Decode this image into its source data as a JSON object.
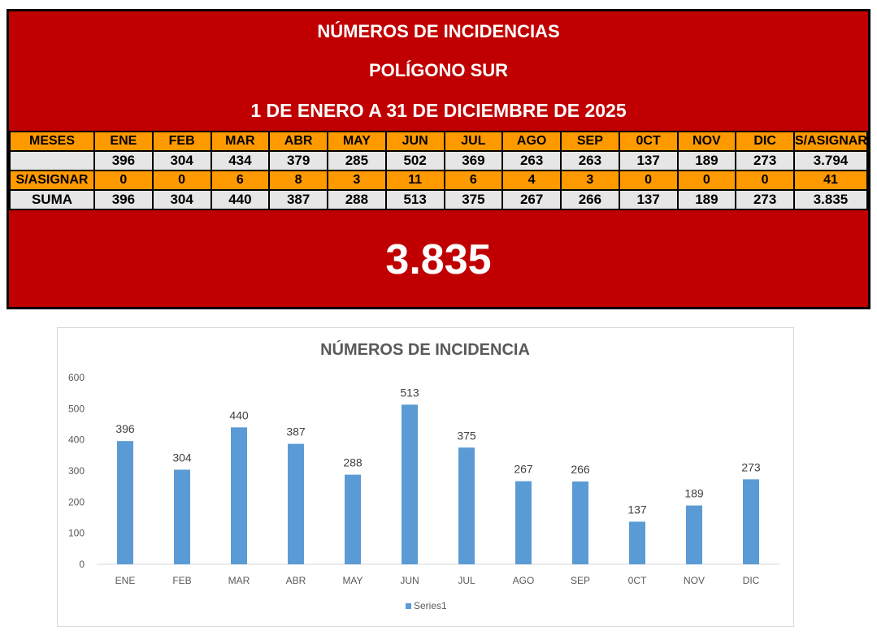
{
  "report": {
    "title": "NÚMEROS DE INCIDENCIAS",
    "subtitle": "POLÍGONO SUR",
    "period": "1 DE ENERO A 31 DE DICIEMBRE DE 2025",
    "grand_total": "3.835",
    "colors": {
      "panel": "#c00000",
      "header_row": "#ff9900",
      "data_row": "#e6e6e6",
      "bar": "#5b9bd5"
    }
  },
  "table": {
    "header": [
      "MESES",
      "ENE",
      "FEB",
      "MAR",
      "ABR",
      "MAY",
      "JUN",
      "JUL",
      "AGO",
      "SEP",
      "0CT",
      "NOV",
      "DIC",
      "S/ASIGNAR"
    ],
    "rows": [
      {
        "label": "",
        "style": "grey",
        "cells": [
          "396",
          "304",
          "434",
          "379",
          "285",
          "502",
          "369",
          "263",
          "263",
          "137",
          "189",
          "273",
          "3.794"
        ]
      },
      {
        "label": "S/ASIGNAR",
        "style": "orange",
        "cells": [
          "0",
          "0",
          "6",
          "8",
          "3",
          "11",
          "6",
          "4",
          "3",
          "0",
          "0",
          "0",
          "41"
        ]
      },
      {
        "label": "SUMA",
        "style": "grey",
        "cells": [
          "396",
          "304",
          "440",
          "387",
          "288",
          "513",
          "375",
          "267",
          "266",
          "137",
          "189",
          "273",
          "3.835"
        ]
      }
    ]
  },
  "chart_data": {
    "type": "bar",
    "title": "NÚMEROS DE INCIDENCIA",
    "categories": [
      "ENE",
      "FEB",
      "MAR",
      "ABR",
      "MAY",
      "JUN",
      "JUL",
      "AGO",
      "SEP",
      "0CT",
      "NOV",
      "DIC"
    ],
    "series": [
      {
        "name": "Series1",
        "values": [
          396,
          304,
          440,
          387,
          288,
          513,
          375,
          267,
          266,
          137,
          189,
          273
        ]
      }
    ],
    "ylim": [
      0,
      600
    ],
    "yticks": [
      0,
      100,
      200,
      300,
      400,
      500,
      600
    ],
    "xlabel": "",
    "ylabel": "",
    "grid": false,
    "legend": "bottom",
    "data_labels": true
  }
}
